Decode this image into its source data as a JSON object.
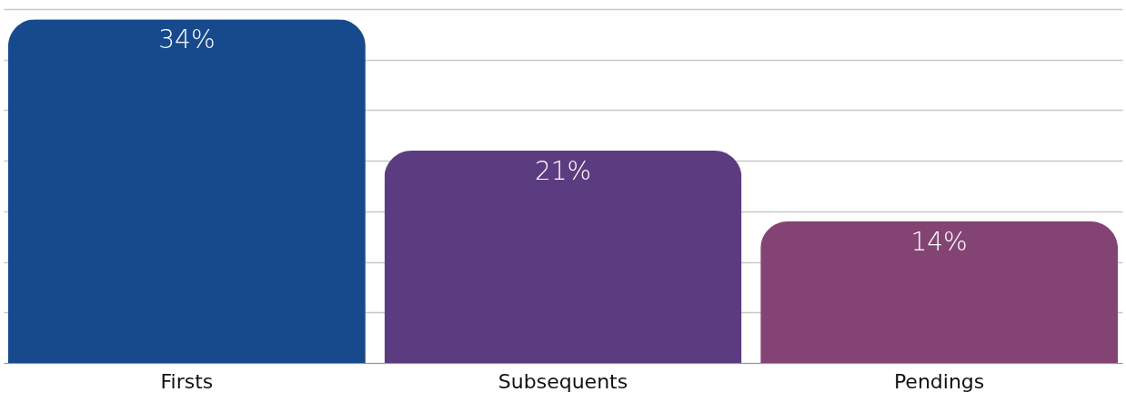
{
  "chart_data": {
    "type": "bar",
    "categories": [
      "Firsts",
      "Subsequents",
      "Pendings"
    ],
    "values": [
      34,
      21,
      14
    ],
    "colors": [
      "#174a8c",
      "#5c3c80",
      "#834474"
    ],
    "ylim": [
      0,
      35
    ],
    "yticks": [
      {
        "value": 0,
        "label": null
      },
      {
        "value": 5,
        "label": null
      },
      {
        "value": 10,
        "label": null
      },
      {
        "value": 15,
        "label": null
      },
      {
        "value": 20,
        "label": null
      },
      {
        "value": 25,
        "label": null
      },
      {
        "value": 30,
        "label": null
      },
      {
        "value": 35,
        "label": null
      }
    ],
    "value_labels": [
      "34%",
      "21%",
      "14%"
    ],
    "grid": "y",
    "tick_labels": "x"
  }
}
